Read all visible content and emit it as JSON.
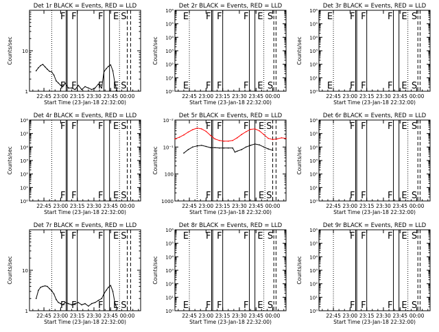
{
  "figure": {
    "x_tick_labels_a": [
      "22:45",
      "23:00",
      "23:15",
      "23:30",
      "23:45",
      "00:00"
    ],
    "x_tick_labels_b": [
      "22:45",
      "23:00",
      "23:15",
      "23:30",
      "23:45",
      "00:00"
    ],
    "xlabel": "Start Time (23-Jan-18 22:32:00)",
    "ylabel": "Counts/sec",
    "colors": {
      "events": "#000000",
      "lld": "#ff0000",
      "markers": "#000000"
    }
  },
  "chart_data": [
    {
      "type": "line",
      "title": "Det 1r BLACK = Events, RED = LLD",
      "xlabel": "Start Time (23-Jan-18 22:32:00)",
      "ylabel": "Counts/sec",
      "yscale": "log",
      "ylim": [
        1,
        100
      ],
      "y_tick_labels": [
        "1",
        "10"
      ],
      "x_tick_labels": [
        "22:45",
        "23:00",
        "23:15",
        "23:30",
        "23:45",
        "00:00"
      ],
      "xlim": [
        "22:32",
        "00:12"
      ],
      "markers": [
        {
          "time": "22:52",
          "style": "dotted",
          "label": ""
        },
        {
          "time": "23:05",
          "style": "solid",
          "label": "F"
        },
        {
          "time": "23:06",
          "style": "solid",
          "label": ""
        },
        {
          "time": "23:15",
          "style": "solid",
          "label": "F"
        },
        {
          "time": "23:39",
          "style": "solid",
          "label": "F"
        },
        {
          "time": "23:44",
          "style": "solid",
          "label": ""
        },
        {
          "time": "23:53",
          "style": "dotted",
          "label": "E"
        },
        {
          "time": "00:00",
          "style": "dashed",
          "label": "S"
        },
        {
          "time": "00:03",
          "style": "dashed",
          "label": ""
        }
      ],
      "series": [
        {
          "name": "Events",
          "color": "#000000",
          "x": [
            "22:38",
            "22:40",
            "22:42",
            "22:44",
            "22:46",
            "22:48",
            "22:50",
            "22:52",
            "22:54",
            "22:56",
            "22:58",
            "23:00",
            "23:02",
            "23:04",
            "23:07",
            "23:10",
            "23:13",
            "23:16",
            "23:19",
            "23:22",
            "23:25",
            "23:28",
            "23:31",
            "23:34",
            "23:37",
            "23:39",
            "23:41",
            "23:43",
            "23:45",
            "23:47",
            "23:49",
            "23:51"
          ],
          "values": [
            3.2,
            3.8,
            4.3,
            4.6,
            4.0,
            3.5,
            3.1,
            3.0,
            2.5,
            1.8,
            1.6,
            1.4,
            1.3,
            1.6,
            1.2,
            1.2,
            1.1,
            1.4,
            1.1,
            1.3,
            1.2,
            1.1,
            1.2,
            1.5,
            1.2,
            3.0,
            3.6,
            4.1,
            4.5,
            3.2,
            1.5,
            1.0
          ]
        }
      ]
    },
    {
      "type": "line",
      "title": "Det 2r BLACK = Events, RED = LLD",
      "xlabel": "Start Time (23-Jan-18 22:32:00)",
      "ylabel": "Counts/sec",
      "yscale": "log",
      "ylim": [
        1,
        1000000
      ],
      "y_tick_labels": [
        "10⁰",
        "10¹",
        "10²",
        "10³",
        "10⁴",
        "10⁵",
        "10⁶"
      ],
      "x_tick_labels": [
        "22:45",
        "23:00",
        "23:15",
        "23:30",
        "23:45",
        "00:00"
      ],
      "xlim": [
        "22:32",
        "00:12"
      ],
      "markers": [
        {
          "time": "22:45",
          "style": "dotted",
          "label": "E"
        },
        {
          "time": "23:05",
          "style": "solid",
          "label": "F"
        },
        {
          "time": "23:06",
          "style": "solid",
          "label": ""
        },
        {
          "time": "23:15",
          "style": "solid",
          "label": "F"
        },
        {
          "time": "23:39",
          "style": "solid",
          "label": "F"
        },
        {
          "time": "23:44",
          "style": "solid",
          "label": ""
        },
        {
          "time": "23:52",
          "style": "dotted",
          "label": "E"
        },
        {
          "time": "00:01",
          "style": "dashed",
          "label": "S"
        },
        {
          "time": "00:03",
          "style": "dashed",
          "label": ""
        }
      ],
      "series": []
    },
    {
      "type": "line",
      "title": "Det 3r BLACK = Events, RED = LLD",
      "xlabel": "Start Time (23-Jan-18 22:32:00)",
      "ylabel": "Counts/sec",
      "yscale": "log",
      "ylim": [
        1,
        1000000
      ],
      "y_tick_labels": [
        "10⁰",
        "10¹",
        "10²",
        "10³",
        "10⁴",
        "10⁵",
        "10⁶"
      ],
      "x_tick_labels": [
        "22:45",
        "23:00",
        "23:15",
        "23:30",
        "23:45",
        "00:00"
      ],
      "xlim": [
        "22:32",
        "00:12"
      ],
      "markers": [
        {
          "time": "22:45",
          "style": "dotted",
          "label": "E"
        },
        {
          "time": "23:05",
          "style": "solid",
          "label": "F"
        },
        {
          "time": "23:06",
          "style": "solid",
          "label": ""
        },
        {
          "time": "23:15",
          "style": "solid",
          "label": "F"
        },
        {
          "time": "23:39",
          "style": "solid",
          "label": "F"
        },
        {
          "time": "23:44",
          "style": "solid",
          "label": ""
        },
        {
          "time": "23:52",
          "style": "dotted",
          "label": "E"
        },
        {
          "time": "00:01",
          "style": "dashed",
          "label": "S"
        },
        {
          "time": "00:03",
          "style": "dashed",
          "label": ""
        }
      ],
      "series": []
    },
    {
      "type": "line",
      "title": "Det 4r BLACK = Events, RED = LLD",
      "xlabel": "Start Time (23-Jan-18 22:32:00)",
      "ylabel": "Counts/sec",
      "yscale": "log",
      "ylim": [
        1,
        1000000
      ],
      "y_tick_labels": [
        "10⁰",
        "10¹",
        "10²",
        "10³",
        "10⁴",
        "10⁵",
        "10⁶"
      ],
      "x_tick_labels": [
        "22:45",
        "23:00",
        "23:15",
        "23:30",
        "23:45",
        "00:00"
      ],
      "xlim": [
        "22:32",
        "00:12"
      ],
      "markers": [
        {
          "time": "22:52",
          "style": "dotted",
          "label": ""
        },
        {
          "time": "23:05",
          "style": "solid",
          "label": "F"
        },
        {
          "time": "23:06",
          "style": "solid",
          "label": ""
        },
        {
          "time": "23:15",
          "style": "solid",
          "label": "F"
        },
        {
          "time": "23:39",
          "style": "solid",
          "label": "F"
        },
        {
          "time": "23:44",
          "style": "solid",
          "label": ""
        },
        {
          "time": "23:53",
          "style": "dotted",
          "label": "E"
        },
        {
          "time": "00:00",
          "style": "dashed",
          "label": "S"
        },
        {
          "time": "00:03",
          "style": "dashed",
          "label": ""
        }
      ],
      "series": []
    },
    {
      "type": "line",
      "title": "Det 5r BLACK = Events, RED = LLD",
      "xlabel": "Start Time (23-Jan-18 22:32:00)",
      "ylabel": "Counts/sec",
      "yscale": "log",
      "ylim": [
        1,
        1000
      ],
      "y_tick_labels": [
        "1000",
        "100",
        "10⁻¹",
        "10⁻²",
        "10⁻³",
        "10⁻⁴"
      ],
      "x_tick_labels": [
        "22:45",
        "23:00",
        "23:15",
        "23:30",
        "23:45",
        "00:00"
      ],
      "xlim": [
        "22:32",
        "00:12"
      ],
      "markers": [
        {
          "time": "22:52",
          "style": "dotted",
          "label": ""
        },
        {
          "time": "23:05",
          "style": "solid",
          "label": "F"
        },
        {
          "time": "23:06",
          "style": "solid",
          "label": ""
        },
        {
          "time": "23:15",
          "style": "solid",
          "label": "F"
        },
        {
          "time": "23:39",
          "style": "solid",
          "label": "F"
        },
        {
          "time": "23:44",
          "style": "solid",
          "label": ""
        },
        {
          "time": "23:53",
          "style": "dotted",
          "label": "E"
        },
        {
          "time": "00:00",
          "style": "dashed",
          "label": "S"
        },
        {
          "time": "00:03",
          "style": "dashed",
          "label": ""
        }
      ],
      "series": [
        {
          "name": "LLD",
          "color": "#ff0000",
          "x": [
            "22:32",
            "22:36",
            "22:40",
            "22:44",
            "22:48",
            "22:52",
            "22:56",
            "23:00",
            "23:04",
            "23:08",
            "23:12",
            "23:16",
            "23:20",
            "23:24",
            "23:28",
            "23:32",
            "23:36",
            "23:40",
            "23:44",
            "23:48",
            "23:52",
            "23:56",
            "00:00",
            "00:04",
            "00:08",
            "00:12"
          ],
          "values": [
            200,
            230,
            280,
            360,
            440,
            500,
            470,
            380,
            270,
            200,
            175,
            165,
            165,
            175,
            220,
            290,
            370,
            450,
            470,
            400,
            290,
            210,
            190,
            200,
            220,
            210
          ]
        },
        {
          "name": "Events",
          "color": "#000000",
          "x": [
            "22:40",
            "22:44",
            "22:48",
            "22:52",
            "22:56",
            "23:00",
            "23:04",
            "23:08",
            "23:12",
            "23:16",
            "23:20",
            "23:24",
            "23:26",
            "23:28",
            "23:32",
            "23:36",
            "23:40",
            "23:44",
            "23:48",
            "23:52",
            "23:56",
            "00:00"
          ],
          "values": [
            60,
            80,
            100,
            110,
            115,
            105,
            95,
            95,
            92,
            92,
            92,
            92,
            65,
            70,
            80,
            100,
            115,
            130,
            120,
            100,
            85,
            75
          ]
        }
      ]
    },
    {
      "type": "line",
      "title": "Det 6r BLACK = Events, RED = LLD",
      "xlabel": "Start Time (23-Jan-18 22:32:00)",
      "ylabel": "Counts/sec",
      "yscale": "log",
      "ylim": [
        1,
        1000000
      ],
      "y_tick_labels": [
        "10⁰",
        "10¹",
        "10²",
        "10³",
        "10⁴",
        "10⁵",
        "10⁶"
      ],
      "x_tick_labels": [
        "22:45",
        "23:00",
        "23:15",
        "23:30",
        "23:45",
        "00:00"
      ],
      "xlim": [
        "22:32",
        "00:12"
      ],
      "markers": [
        {
          "time": "22:45",
          "style": "dotted",
          "label": ""
        },
        {
          "time": "23:05",
          "style": "solid",
          "label": "F"
        },
        {
          "time": "23:06",
          "style": "solid",
          "label": ""
        },
        {
          "time": "23:15",
          "style": "solid",
          "label": "F"
        },
        {
          "time": "23:39",
          "style": "solid",
          "label": "F"
        },
        {
          "time": "23:44",
          "style": "solid",
          "label": ""
        },
        {
          "time": "23:52",
          "style": "dotted",
          "label": "E"
        },
        {
          "time": "00:01",
          "style": "dashed",
          "label": "S"
        },
        {
          "time": "00:03",
          "style": "dashed",
          "label": ""
        }
      ],
      "series": []
    },
    {
      "type": "line",
      "title": "Det 7r BLACK = Events, RED = LLD",
      "xlabel": "Start Time (23-Jan-18 22:32:00)",
      "ylabel": "Counts/sec",
      "yscale": "log",
      "ylim": [
        1,
        100
      ],
      "y_tick_labels": [
        "1",
        "10"
      ],
      "x_tick_labels": [
        "22:45",
        "23:00",
        "23:15",
        "23:30",
        "23:45",
        "00:00"
      ],
      "xlim": [
        "22:32",
        "00:12"
      ],
      "markers": [
        {
          "time": "22:52",
          "style": "dotted",
          "label": ""
        },
        {
          "time": "23:05",
          "style": "solid",
          "label": "F"
        },
        {
          "time": "23:06",
          "style": "solid",
          "label": ""
        },
        {
          "time": "23:15",
          "style": "solid",
          "label": "F"
        },
        {
          "time": "23:39",
          "style": "solid",
          "label": "F"
        },
        {
          "time": "23:44",
          "style": "solid",
          "label": ""
        },
        {
          "time": "23:53",
          "style": "dotted",
          "label": "E"
        },
        {
          "time": "00:00",
          "style": "dashed",
          "label": "S"
        },
        {
          "time": "00:03",
          "style": "dashed",
          "label": ""
        }
      ],
      "series": [
        {
          "name": "Events",
          "color": "#000000",
          "x": [
            "22:38",
            "22:40",
            "22:42",
            "22:44",
            "22:46",
            "22:48",
            "22:50",
            "22:52",
            "22:54",
            "22:56",
            "22:58",
            "23:00",
            "23:02",
            "23:04",
            "23:07",
            "23:10",
            "23:13",
            "23:16",
            "23:19",
            "23:22",
            "23:25",
            "23:28",
            "23:31",
            "23:34",
            "23:37",
            "23:39",
            "23:41",
            "23:43",
            "23:45",
            "23:47",
            "23:49",
            "23:51"
          ],
          "values": [
            2.0,
            3.2,
            3.8,
            4.0,
            4.1,
            4.0,
            3.5,
            3.1,
            2.6,
            1.9,
            1.6,
            1.5,
            1.4,
            1.6,
            1.5,
            1.4,
            1.5,
            1.6,
            1.4,
            1.5,
            1.3,
            1.5,
            1.6,
            1.8,
            2.0,
            2.6,
            3.2,
            3.8,
            4.2,
            3.0,
            1.5,
            1.1
          ]
        }
      ]
    },
    {
      "type": "line",
      "title": "Det 8r BLACK = Events, RED = LLD",
      "xlabel": "Start Time (23-Jan-18 22:32:00)",
      "ylabel": "Counts/sec",
      "yscale": "log",
      "ylim": [
        1,
        1000000
      ],
      "y_tick_labels": [
        "10⁰",
        "10¹",
        "10²",
        "10³",
        "10⁴",
        "10⁵",
        "10⁶"
      ],
      "x_tick_labels": [
        "22:45",
        "23:00",
        "23:15",
        "23:30",
        "23:45",
        "00:00"
      ],
      "xlim": [
        "22:32",
        "00:12"
      ],
      "markers": [
        {
          "time": "22:45",
          "style": "dotted",
          "label": "E"
        },
        {
          "time": "23:05",
          "style": "solid",
          "label": "F"
        },
        {
          "time": "23:06",
          "style": "solid",
          "label": ""
        },
        {
          "time": "23:15",
          "style": "solid",
          "label": "F"
        },
        {
          "time": "23:39",
          "style": "solid",
          "label": "F"
        },
        {
          "time": "23:44",
          "style": "solid",
          "label": ""
        },
        {
          "time": "23:52",
          "style": "dotted",
          "label": "E"
        },
        {
          "time": "00:01",
          "style": "dashed",
          "label": "S"
        },
        {
          "time": "00:03",
          "style": "dashed",
          "label": ""
        }
      ],
      "series": []
    },
    {
      "type": "line",
      "title": "Det 9r BLACK = Events, RED = LLD",
      "xlabel": "Start Time (23-Jan-18 22:32:00)",
      "ylabel": "Counts/sec",
      "yscale": "log",
      "ylim": [
        1,
        1000000
      ],
      "y_tick_labels": [
        "10⁰",
        "10¹",
        "10²",
        "10³",
        "10⁴",
        "10⁵",
        "10⁶"
      ],
      "x_tick_labels": [
        "22:45",
        "23:00",
        "23:15",
        "23:30",
        "23:45",
        "00:00"
      ],
      "xlim": [
        "22:32",
        "00:12"
      ],
      "markers": [
        {
          "time": "22:45",
          "style": "dotted",
          "label": ""
        },
        {
          "time": "23:05",
          "style": "solid",
          "label": "F"
        },
        {
          "time": "23:06",
          "style": "solid",
          "label": ""
        },
        {
          "time": "23:15",
          "style": "solid",
          "label": "F"
        },
        {
          "time": "23:39",
          "style": "solid",
          "label": "F"
        },
        {
          "time": "23:44",
          "style": "solid",
          "label": ""
        },
        {
          "time": "23:52",
          "style": "dotted",
          "label": "E"
        },
        {
          "time": "00:01",
          "style": "dashed",
          "label": "S"
        },
        {
          "time": "00:03",
          "style": "dashed",
          "label": ""
        }
      ],
      "series": []
    }
  ]
}
